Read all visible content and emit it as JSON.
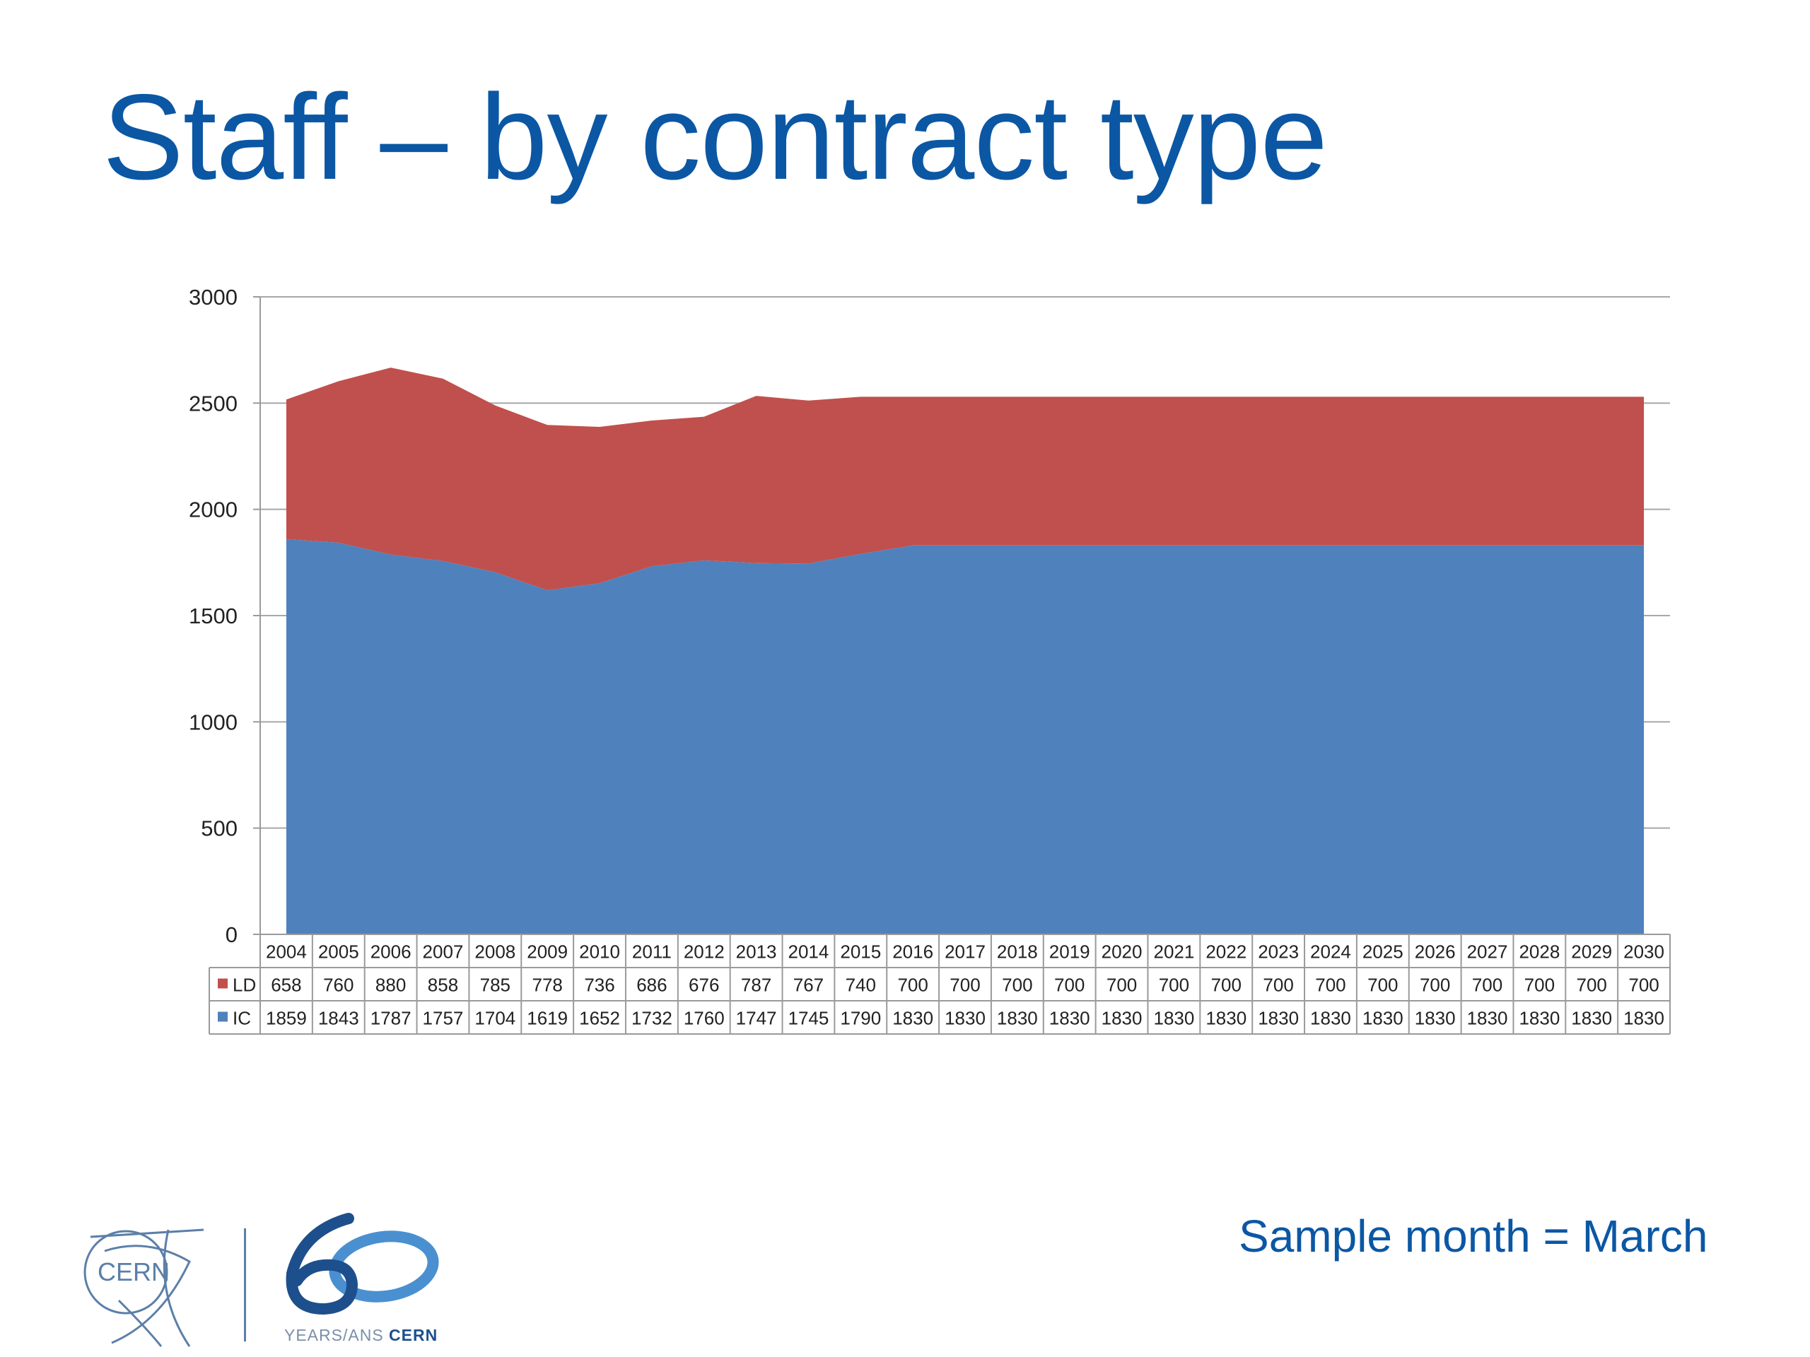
{
  "title": "Staff – by contract type",
  "footer_note": "Sample month = March",
  "logos": {
    "cern_text": "CERN",
    "anniversary_years": "YEARS/ANS",
    "anniversary_org": "CERN",
    "anniversary_number": "60"
  },
  "colors": {
    "title": "#0b57a4",
    "ld": "#c0504d",
    "ic": "#4f81bd"
  },
  "chart_data": {
    "type": "area",
    "stacked": true,
    "x": [
      2004,
      2005,
      2006,
      2007,
      2008,
      2009,
      2010,
      2011,
      2012,
      2013,
      2014,
      2015,
      2016,
      2017,
      2018,
      2019,
      2020,
      2021,
      2022,
      2023,
      2024,
      2025,
      2026,
      2027,
      2028,
      2029,
      2030
    ],
    "series": [
      {
        "name": "IC",
        "color": "#4f81bd",
        "values": [
          1859,
          1843,
          1787,
          1757,
          1704,
          1619,
          1652,
          1732,
          1760,
          1747,
          1745,
          1790,
          1830,
          1830,
          1830,
          1830,
          1830,
          1830,
          1830,
          1830,
          1830,
          1830,
          1830,
          1830,
          1830,
          1830,
          1830
        ]
      },
      {
        "name": "LD",
        "color": "#c0504d",
        "values": [
          658,
          760,
          880,
          858,
          785,
          778,
          736,
          686,
          676,
          787,
          767,
          740,
          700,
          700,
          700,
          700,
          700,
          700,
          700,
          700,
          700,
          700,
          700,
          700,
          700,
          700,
          700
        ]
      }
    ],
    "ylim": [
      0,
      3000
    ],
    "yticks": [
      0,
      500,
      1000,
      1500,
      2000,
      2500,
      3000
    ],
    "grid": true,
    "data_table": true,
    "table_row_order": [
      "LD",
      "IC"
    ]
  }
}
